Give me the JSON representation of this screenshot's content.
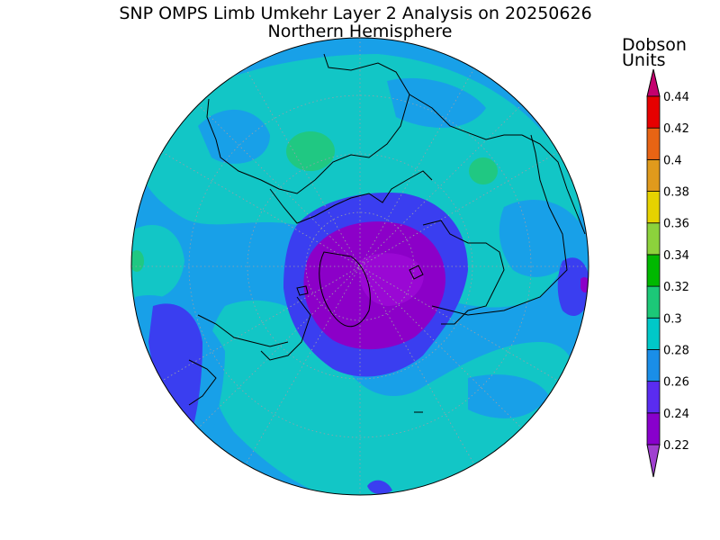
{
  "title": "SNP OMPS Limb Umkehr Layer 2 Analysis on 20250626",
  "subtitle": "Northern Hemisphere",
  "colorbar": {
    "units_line1": "Dobson",
    "units_line2": "Units",
    "ticks": [
      "0.22",
      "0.24",
      "0.26",
      "0.28",
      "0.3",
      "0.32",
      "0.34",
      "0.36",
      "0.38",
      "0.4",
      "0.42",
      "0.44"
    ],
    "colors": [
      "#8800cc",
      "#5a2cf0",
      "#1a8ee8",
      "#00c8c8",
      "#1cc878",
      "#00b800",
      "#8cd23c",
      "#e6d200",
      "#e09a1c",
      "#e86414",
      "#e60000",
      "#c4006e"
    ],
    "under_color": "#a040d0",
    "over_color": "#c4006e"
  },
  "chart_data": {
    "type": "heatmap",
    "title": "SNP OMPS Limb Umkehr Layer 2 Analysis on 20250626",
    "subtitle": "Northern Hemisphere",
    "projection": "polar stereographic",
    "units": "Dobson Units",
    "levels": [
      0.22,
      0.24,
      0.26,
      0.28,
      0.3,
      0.32,
      0.34,
      0.36,
      0.38,
      0.4,
      0.42,
      0.44
    ],
    "min_region_value": 0.22,
    "max_region_value": 0.32
  }
}
